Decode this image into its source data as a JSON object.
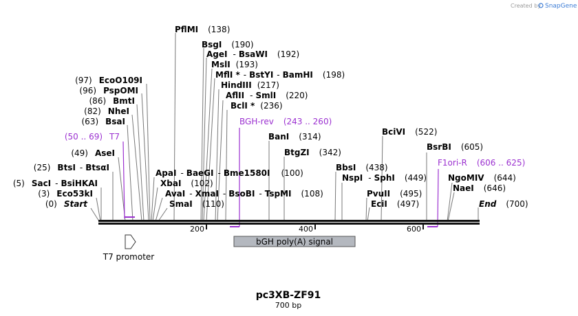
{
  "watermark": {
    "prefix": "Created by",
    "brand": "SnapGene"
  },
  "plasmid": {
    "name": "pc3XB-ZF91",
    "length": "700 bp"
  },
  "ruler": {
    "ticks": [
      "200",
      "400",
      "600"
    ]
  },
  "sites": {
    "pfimi": {
      "name": "PflMI",
      "pos": "(138)"
    },
    "bsgi": {
      "name": "BsgI",
      "pos": "(190)"
    },
    "agei": {
      "name": "AgeI",
      "sep": "-",
      "name2": "BsaWI",
      "pos": "(192)"
    },
    "msli": {
      "name": "MslI",
      "pos": "(193)"
    },
    "mfli": {
      "name": "MflI *",
      "sep": "-",
      "name2": "BstYI",
      "sep2": "-",
      "name3": "BamHI",
      "pos": "(198)"
    },
    "hindiii": {
      "name": "HindIII",
      "pos": "(217)"
    },
    "aflii": {
      "name": "AflII",
      "sep": "-",
      "name2": "SmlI",
      "pos": "(220)"
    },
    "bcli": {
      "name": "BclI *",
      "pos": "(236)"
    },
    "bani": {
      "name": "BanI",
      "pos": "(314)"
    },
    "btgzi": {
      "name": "BtgZI",
      "pos": "(342)"
    },
    "bbsi": {
      "name": "BbsI",
      "pos": "(438)"
    },
    "nspi": {
      "name": "NspI",
      "sep": "-",
      "name2": "SphI",
      "pos": "(449)"
    },
    "pvuii": {
      "name": "PvuII",
      "pos": "(495)"
    },
    "ecii": {
      "name": "EciI",
      "pos": "(497)"
    },
    "bcivi": {
      "name": "BciVI",
      "pos": "(522)"
    },
    "bsrbi": {
      "name": "BsrBI",
      "pos": "(605)"
    },
    "ngomiv": {
      "name": "NgoMIV",
      "pos": "(644)"
    },
    "naei": {
      "name": "NaeI",
      "pos": "(646)"
    },
    "end": {
      "name": "End",
      "pos": "(700)"
    },
    "apai": {
      "name": "ApaI",
      "sep": "-",
      "name2": "BaeGI",
      "sep2": "-",
      "name3": "Bme1580I",
      "pos": "(100)"
    },
    "xbai": {
      "name": "XbaI",
      "pos": "(102)"
    },
    "avai": {
      "name": "AvaI",
      "sep": "-",
      "name2": "XmaI",
      "sep2": "-",
      "name3": "BsoBI",
      "sep3": "-",
      "name4": "TspMI",
      "pos": "(108)"
    },
    "smai": {
      "name": "SmaI",
      "pos": "(110)"
    },
    "eco0109i": {
      "name": "EcoO109I",
      "pos": "(97)"
    },
    "psppomi": {
      "name": "PspOMI",
      "pos": "(96)"
    },
    "bmti": {
      "name": "BmtI",
      "pos": "(86)"
    },
    "nhei": {
      "name": "NheI",
      "pos": "(82)"
    },
    "bsai": {
      "name": "BsaI",
      "pos": "(63)"
    },
    "asei": {
      "name": "AseI",
      "pos": "(49)"
    },
    "btsi": {
      "name": "BtsI",
      "sep": "-",
      "name2": "BtsαI",
      "pos": "(25)"
    },
    "saci": {
      "name": "SacI",
      "sep": "-",
      "name2": "BsiHKAI",
      "pos": "(5)"
    },
    "eco53ki": {
      "name": "Eco53kI",
      "pos": "(3)"
    },
    "start": {
      "name": "Start",
      "pos": "(0)"
    }
  },
  "primers": {
    "t7": {
      "range": "(50 .. 69)",
      "name": "T7"
    },
    "bgh": {
      "name": "BGH-rev",
      "range": "(243 .. 260)"
    },
    "f1ori": {
      "name": "F1ori-R",
      "range": "(606 .. 625)"
    }
  },
  "features": {
    "t7promoter": {
      "label": "T7 promoter"
    },
    "bgh": {
      "label": "bGH poly(A) signal"
    }
  },
  "colors": {
    "primer": "#9b30d0",
    "feature_fill": "#b4b8bf",
    "line": "#777777"
  }
}
